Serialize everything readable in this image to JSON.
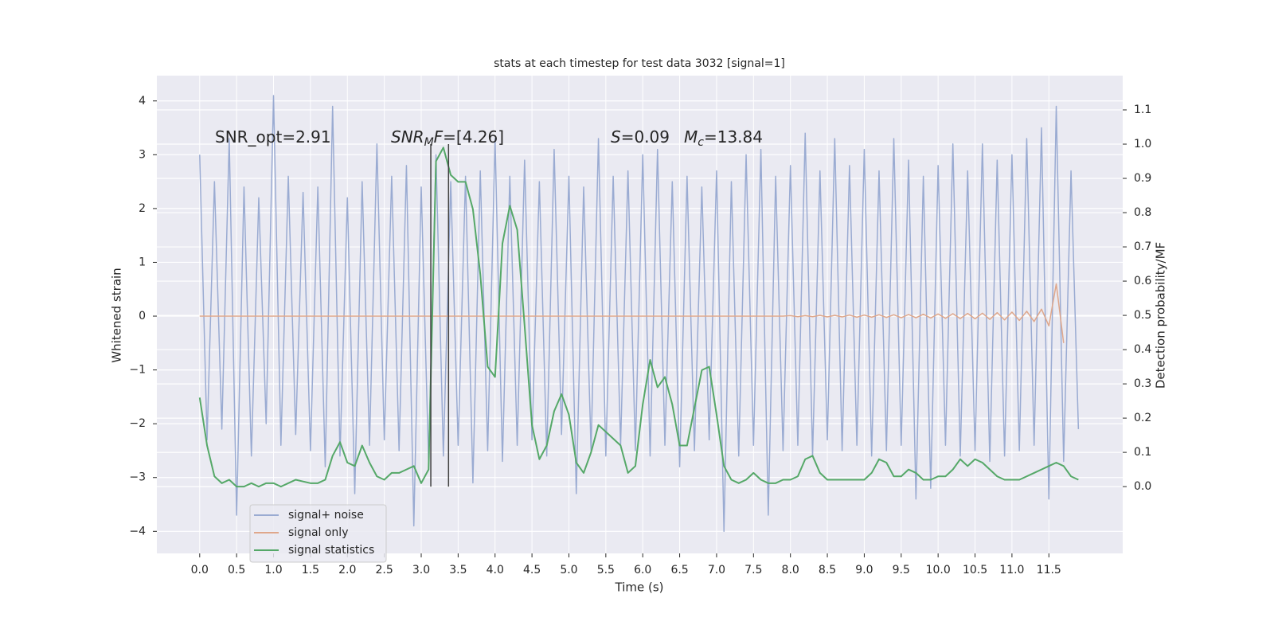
{
  "chart_data": {
    "type": "line",
    "title": "stats at each timestep for test data 3032 [signal=1]",
    "xlabel": "Time (s)",
    "ylabel": "Whitened strain",
    "y2label": "Detection probability/MF",
    "xlim": [
      -0.58,
      12.5
    ],
    "ylim": [
      -4.41,
      4.47
    ],
    "y2lim": [
      -0.195,
      1.2
    ],
    "grid": true,
    "xticks": [
      {
        "value": 0,
        "label": "0.0"
      },
      {
        "value": 0.5,
        "label": "0.5"
      },
      {
        "value": 1,
        "label": "1.0"
      },
      {
        "value": 1.5,
        "label": "1.5"
      },
      {
        "value": 2,
        "label": "2.0"
      },
      {
        "value": 2.5,
        "label": "2.5"
      },
      {
        "value": 3,
        "label": "3.0"
      },
      {
        "value": 3.5,
        "label": "3.5"
      },
      {
        "value": 4,
        "label": "4.0"
      },
      {
        "value": 4.5,
        "label": "4.5"
      },
      {
        "value": 5,
        "label": "5.0"
      },
      {
        "value": 5.5,
        "label": "5.5"
      },
      {
        "value": 6,
        "label": "6.0"
      },
      {
        "value": 6.5,
        "label": "6.5"
      },
      {
        "value": 7,
        "label": "7.0"
      },
      {
        "value": 7.5,
        "label": "7.5"
      },
      {
        "value": 8,
        "label": "8.0"
      },
      {
        "value": 8.5,
        "label": "8.5"
      },
      {
        "value": 9,
        "label": "9.0"
      },
      {
        "value": 9.5,
        "label": "9.5"
      },
      {
        "value": 10,
        "label": "10.0"
      },
      {
        "value": 10.5,
        "label": "10.5"
      },
      {
        "value": 11,
        "label": "11.0"
      },
      {
        "value": 11.5,
        "label": "11.5"
      }
    ],
    "yticks": [
      {
        "value": -4,
        "label": "−4"
      },
      {
        "value": -3,
        "label": "−3"
      },
      {
        "value": -2,
        "label": "−2"
      },
      {
        "value": -1,
        "label": "−1"
      },
      0,
      1,
      2,
      3,
      4
    ],
    "y2ticks": [
      {
        "value": 0,
        "label": "0.0"
      },
      {
        "value": 0.1,
        "label": "0.1"
      },
      {
        "value": 0.2,
        "label": "0.2"
      },
      {
        "value": 0.3,
        "label": "0.3"
      },
      {
        "value": 0.4,
        "label": "0.4"
      },
      {
        "value": 0.5,
        "label": "0.5"
      },
      {
        "value": 0.6,
        "label": "0.6"
      },
      {
        "value": 0.7,
        "label": "0.7"
      },
      {
        "value": 0.8,
        "label": "0.8"
      },
      {
        "value": 0.9,
        "label": "0.9"
      },
      {
        "value": 1.0,
        "label": "1.0"
      },
      {
        "value": 1.1,
        "label": "1.1"
      }
    ],
    "x": [
      0,
      0.1,
      0.2,
      0.3,
      0.4,
      0.5,
      0.6,
      0.7,
      0.8,
      0.9,
      1,
      1.1,
      1.2,
      1.3,
      1.4,
      1.5,
      1.6,
      1.7,
      1.8,
      1.9,
      2,
      2.1,
      2.2,
      2.3,
      2.4,
      2.5,
      2.6,
      2.7,
      2.8,
      2.9,
      3,
      3.1,
      3.2,
      3.3,
      3.4,
      3.5,
      3.6,
      3.7,
      3.8,
      3.9,
      4,
      4.1,
      4.2,
      4.3,
      4.4,
      4.5,
      4.6,
      4.7,
      4.8,
      4.9,
      5,
      5.1,
      5.2,
      5.3,
      5.4,
      5.5,
      5.6,
      5.7,
      5.8,
      5.9,
      6,
      6.1,
      6.2,
      6.3,
      6.4,
      6.5,
      6.6,
      6.7,
      6.8,
      6.9,
      7,
      7.1,
      7.2,
      7.3,
      7.4,
      7.5,
      7.6,
      7.7,
      7.8,
      7.9,
      8,
      8.1,
      8.2,
      8.3,
      8.4,
      8.5,
      8.6,
      8.7,
      8.8,
      8.9,
      9,
      9.1,
      9.2,
      9.3,
      9.4,
      9.5,
      9.6,
      9.7,
      9.8,
      9.9,
      10,
      10.1,
      10.2,
      10.3,
      10.4,
      10.5,
      10.6,
      10.7,
      10.8,
      10.9,
      11,
      11.1,
      11.2,
      11.3,
      11.4,
      11.5,
      11.6,
      11.7,
      11.8,
      11.9
    ],
    "series": [
      {
        "name": "signal+ noise",
        "color": "#9aabd2",
        "values": [
          3.0,
          -2.3,
          2.5,
          -2.1,
          3.3,
          -3.7,
          2.4,
          -2.6,
          2.2,
          -2.0,
          4.1,
          -2.4,
          2.6,
          -2.2,
          2.3,
          -2.5,
          2.4,
          -2.8,
          3.9,
          -2.6,
          2.2,
          -3.3,
          2.5,
          -2.4,
          3.2,
          -2.3,
          2.6,
          -2.5,
          2.8,
          -3.9,
          2.4,
          -2.7,
          3.0,
          -2.6,
          2.5,
          -2.4,
          2.6,
          -3.1,
          2.7,
          -2.5,
          3.3,
          -2.7,
          2.6,
          -2.4,
          2.9,
          -2.3,
          2.5,
          -2.6,
          3.1,
          -2.2,
          2.6,
          -3.3,
          2.4,
          -2.5,
          3.3,
          -2.6,
          2.6,
          -2.4,
          2.7,
          -2.5,
          3.0,
          -2.6,
          3.1,
          -2.4,
          2.5,
          -2.8,
          2.6,
          -2.5,
          2.4,
          -2.3,
          2.7,
          -4.0,
          2.5,
          -2.6,
          3.0,
          -2.4,
          3.1,
          -3.7,
          2.6,
          -2.5,
          2.8,
          -2.4,
          3.4,
          -2.6,
          2.7,
          -2.3,
          3.3,
          -2.5,
          2.8,
          -2.4,
          3.1,
          -2.6,
          2.7,
          -2.5,
          3.3,
          -2.4,
          2.9,
          -3.4,
          2.6,
          -3.2,
          2.8,
          -2.4,
          3.2,
          -2.6,
          2.7,
          -2.5,
          3.2,
          -2.7,
          2.9,
          -2.6,
          3.0,
          -2.5,
          3.3,
          -2.4,
          3.5,
          -3.4,
          3.9,
          -2.7,
          2.7,
          -2.1
        ]
      },
      {
        "name": "signal only",
        "color": "#dfa78b",
        "values": [
          0,
          0,
          0,
          0,
          0,
          0,
          0,
          0,
          0,
          0,
          0,
          0,
          0,
          0,
          0,
          0,
          0,
          0,
          0,
          0,
          0,
          0,
          0,
          0,
          0,
          0,
          0,
          0,
          0,
          0,
          0,
          0,
          0,
          0,
          0,
          0,
          0,
          0,
          0,
          0,
          0,
          0,
          0,
          0,
          0,
          0,
          0,
          0,
          0,
          0,
          0,
          0,
          0,
          0,
          0,
          0,
          0,
          0,
          0,
          0,
          0,
          0,
          0,
          0,
          0,
          0,
          0,
          0,
          0,
          0,
          0,
          0,
          0,
          0,
          0,
          0,
          0,
          0,
          0,
          0,
          0.01,
          -0.01,
          0.01,
          -0.01,
          0.015,
          -0.015,
          0.015,
          -0.015,
          0.02,
          -0.02,
          0.02,
          -0.02,
          0.025,
          -0.025,
          0.025,
          -0.03,
          0.03,
          -0.03,
          0.035,
          -0.035,
          0.04,
          -0.04,
          0.045,
          -0.045,
          0.05,
          -0.05,
          0.055,
          -0.06,
          0.065,
          -0.07,
          0.075,
          -0.08,
          0.09,
          -0.1,
          0.13,
          -0.18,
          0.6,
          -0.5,
          null,
          null
        ]
      },
      {
        "name": "signal statistics",
        "color": "#55a868",
        "axis": "y2",
        "values": [
          0.26,
          0.12,
          0.03,
          0.01,
          0.02,
          0.0,
          0.0,
          0.01,
          0.0,
          0.01,
          0.01,
          0.0,
          0.01,
          0.02,
          0.015,
          0.01,
          0.01,
          0.02,
          0.09,
          0.13,
          0.07,
          0.06,
          0.12,
          0.07,
          0.03,
          0.02,
          0.04,
          0.04,
          0.05,
          0.06,
          0.01,
          0.05,
          0.95,
          0.99,
          0.91,
          0.89,
          0.89,
          0.81,
          0.62,
          0.35,
          0.32,
          0.71,
          0.82,
          0.75,
          0.47,
          0.18,
          0.08,
          0.12,
          0.22,
          0.27,
          0.21,
          0.07,
          0.04,
          0.1,
          0.18,
          0.16,
          0.14,
          0.12,
          0.04,
          0.06,
          0.24,
          0.37,
          0.29,
          0.32,
          0.24,
          0.12,
          0.12,
          0.23,
          0.34,
          0.35,
          0.21,
          0.06,
          0.02,
          0.01,
          0.02,
          0.04,
          0.02,
          0.01,
          0.01,
          0.02,
          0.02,
          0.03,
          0.08,
          0.09,
          0.04,
          0.02,
          0.02,
          0.02,
          0.02,
          0.02,
          0.02,
          0.04,
          0.08,
          0.07,
          0.03,
          0.03,
          0.05,
          0.04,
          0.02,
          0.02,
          0.03,
          0.03,
          0.05,
          0.08,
          0.06,
          0.08,
          0.07,
          0.05,
          0.03,
          0.02,
          0.02,
          0.02,
          0.03,
          0.04,
          0.05,
          0.06,
          0.07,
          0.06,
          0.03,
          0.02
        ]
      }
    ],
    "vlines": [
      3.13,
      3.37
    ],
    "vline_range": [
      0,
      1.0
    ],
    "vline_color": "#404040",
    "annotations": [
      {
        "parts": [
          {
            "text": "SNR_opt=2.91"
          }
        ]
      },
      {
        "parts": [
          {
            "text": "SNR",
            "style": "italic"
          },
          {
            "text": "M",
            "style": "italic-sub"
          },
          {
            "text": "F",
            "style": "italic"
          },
          {
            "text": "=[4.26]"
          }
        ]
      },
      {
        "parts": [
          {
            "text": "S",
            "style": "italic"
          },
          {
            "text": "=0.09"
          }
        ]
      },
      {
        "parts": [
          {
            "text": "M",
            "style": "italic"
          },
          {
            "text": "c",
            "style": "italic-sub"
          },
          {
            "text": "=13.84"
          }
        ]
      }
    ]
  }
}
